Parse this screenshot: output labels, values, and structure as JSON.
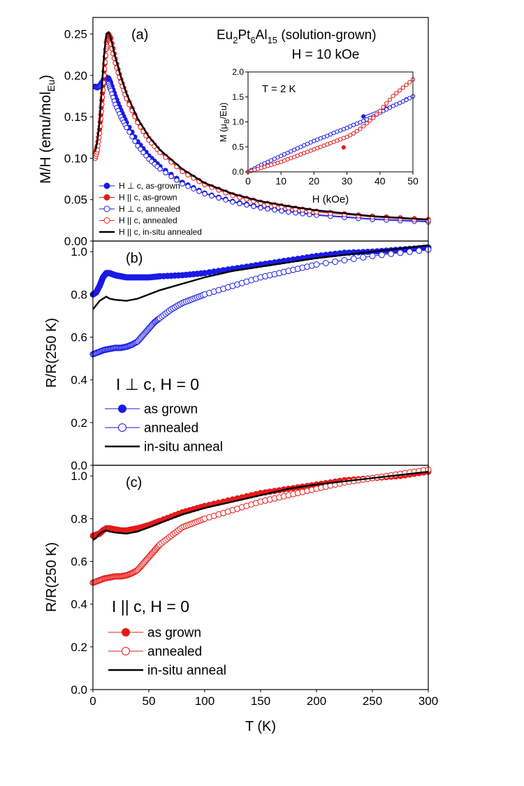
{
  "figure": {
    "title_prefix": "Eu",
    "title_sub1": "2",
    "title_mid1": "Pt",
    "title_sub2": "6",
    "title_mid2": "Al",
    "title_sub3": "15",
    "title_suffix": " (solution-grown)",
    "field_label": "H = 10 kOe"
  },
  "colors": {
    "blue": "#1a1ae6",
    "red": "#e61a1a",
    "black": "#000000"
  },
  "chart_data": [
    {
      "id": "a",
      "type": "scatter",
      "panel_label": "(a)",
      "ylabel_main": "M/H (emu/mol",
      "ylabel_sub": "Eu",
      "ylabel_close": ")",
      "xlim": [
        0,
        300
      ],
      "ylim": [
        0,
        0.27
      ],
      "yticks": [
        0.0,
        0.05,
        0.1,
        0.15,
        0.2,
        0.25
      ],
      "ytick_labels": [
        "0.00",
        "0.05",
        "0.10",
        "0.15",
        "0.20",
        "0.25"
      ],
      "legend": [
        "H ⊥ c, as-grown",
        "H || c, as-grown",
        "H ⊥ c, annealed",
        "H || c, annealed",
        "H || c, in-situ annealed"
      ],
      "series": [
        {
          "name": "H ⊥ c, as-grown",
          "color": "blue",
          "marker": "filled",
          "x": [
            2,
            4,
            6,
            8,
            10,
            12,
            14,
            16,
            20,
            25,
            30,
            40,
            50,
            60,
            80,
            100,
            125,
            150,
            175,
            200,
            250,
            300
          ],
          "y": [
            0.187,
            0.186,
            0.188,
            0.192,
            0.196,
            0.198,
            0.197,
            0.191,
            0.175,
            0.158,
            0.143,
            0.12,
            0.103,
            0.09,
            0.071,
            0.058,
            0.048,
            0.041,
            0.036,
            0.032,
            0.027,
            0.024
          ]
        },
        {
          "name": "H || c, as-grown",
          "color": "red",
          "marker": "filled",
          "x": [
            2,
            4,
            6,
            8,
            10,
            12,
            14,
            16,
            20,
            25,
            30,
            40,
            50,
            60,
            80,
            100,
            125,
            150,
            175,
            200,
            250,
            300
          ],
          "y": [
            0.105,
            0.115,
            0.135,
            0.17,
            0.205,
            0.24,
            0.25,
            0.245,
            0.22,
            0.195,
            0.175,
            0.145,
            0.124,
            0.108,
            0.085,
            0.069,
            0.056,
            0.047,
            0.041,
            0.036,
            0.03,
            0.026
          ]
        },
        {
          "name": "H ⊥ c, annealed",
          "color": "blue",
          "marker": "open",
          "x": [
            2,
            4,
            6,
            8,
            10,
            12,
            14,
            16,
            20,
            25,
            30,
            40,
            50,
            60,
            80,
            100,
            125,
            150,
            175,
            200,
            250,
            300
          ],
          "y": [
            0.186,
            0.185,
            0.187,
            0.19,
            0.192,
            0.193,
            0.19,
            0.182,
            0.165,
            0.15,
            0.137,
            0.115,
            0.099,
            0.087,
            0.069,
            0.057,
            0.047,
            0.04,
            0.035,
            0.031,
            0.026,
            0.023
          ]
        },
        {
          "name": "H || c, annealed",
          "color": "red",
          "marker": "open",
          "x": [
            2,
            4,
            6,
            8,
            10,
            12,
            14,
            16,
            20,
            25,
            30,
            40,
            50,
            60,
            80,
            100,
            125,
            150,
            175,
            200,
            250,
            300
          ],
          "y": [
            0.1,
            0.11,
            0.13,
            0.165,
            0.2,
            0.232,
            0.242,
            0.238,
            0.215,
            0.192,
            0.172,
            0.143,
            0.122,
            0.107,
            0.084,
            0.068,
            0.055,
            0.046,
            0.04,
            0.035,
            0.029,
            0.025
          ]
        },
        {
          "name": "H || c, in-situ annealed",
          "color": "black",
          "marker": "line",
          "x": [
            2,
            4,
            6,
            8,
            10,
            12,
            14,
            16,
            20,
            25,
            30,
            40,
            50,
            60,
            80,
            100,
            125,
            150,
            175,
            200,
            250,
            300
          ],
          "y": [
            0.108,
            0.12,
            0.145,
            0.185,
            0.225,
            0.25,
            0.252,
            0.245,
            0.222,
            0.198,
            0.178,
            0.148,
            0.126,
            0.11,
            0.087,
            0.07,
            0.057,
            0.048,
            0.042,
            0.037,
            0.03,
            0.026
          ]
        }
      ]
    },
    {
      "id": "a-inset",
      "type": "scatter",
      "annotation": "T = 2 K",
      "xlabel": "H (kOe)",
      "ylabel_main": "M (μ",
      "ylabel_sub": "B",
      "ylabel_close": "/Eu)",
      "xlim": [
        0,
        50
      ],
      "ylim": [
        0,
        2.0
      ],
      "xticks": [
        0,
        10,
        20,
        30,
        40,
        50
      ],
      "xtick_labels": [
        "0",
        "10",
        "20",
        "30",
        "40",
        "50"
      ],
      "yticks": [
        0.0,
        0.5,
        1.0,
        1.5,
        2.0
      ],
      "ytick_labels": [
        "0.0",
        "0.5",
        "1.0",
        "1.5",
        "2.0"
      ],
      "series": [
        {
          "name": "H ⊥ c, as-grown",
          "color": "blue",
          "marker": "filled",
          "x": [
            35,
            48
          ],
          "y": [
            1.11,
            1.45
          ]
        },
        {
          "name": "H || c, as-grown",
          "color": "red",
          "marker": "filled",
          "x": [
            29
          ],
          "y": [
            0.49
          ]
        },
        {
          "name": "H ⊥ c, annealed",
          "color": "blue",
          "marker": "open",
          "x": [
            0,
            2,
            4,
            6,
            8,
            10,
            12,
            14,
            16,
            18,
            20,
            22,
            24,
            26,
            28,
            30,
            32,
            34,
            36,
            38,
            40,
            42,
            44,
            46,
            48,
            50
          ],
          "y": [
            0.0,
            0.07,
            0.14,
            0.2,
            0.26,
            0.32,
            0.38,
            0.44,
            0.5,
            0.56,
            0.62,
            0.67,
            0.72,
            0.78,
            0.83,
            0.88,
            0.94,
            0.99,
            1.05,
            1.11,
            1.18,
            1.25,
            1.32,
            1.38,
            1.44,
            1.51
          ]
        },
        {
          "name": "H || c, annealed",
          "color": "red",
          "marker": "open",
          "x": [
            0,
            2,
            4,
            6,
            8,
            10,
            12,
            14,
            16,
            18,
            20,
            22,
            24,
            26,
            28,
            30,
            32,
            34,
            36,
            38,
            40,
            42,
            44,
            46,
            48,
            50
          ],
          "y": [
            0.0,
            0.04,
            0.08,
            0.12,
            0.16,
            0.2,
            0.25,
            0.3,
            0.35,
            0.4,
            0.45,
            0.5,
            0.55,
            0.6,
            0.65,
            0.7,
            0.77,
            0.86,
            0.97,
            1.08,
            1.22,
            1.37,
            1.52,
            1.63,
            1.74,
            1.85
          ]
        }
      ]
    },
    {
      "id": "b",
      "type": "line",
      "panel_label": "(b)",
      "annotation": "I ⊥ c, H = 0",
      "ylabel": "R/R(250 K)",
      "xlim": [
        0,
        300
      ],
      "ylim": [
        0,
        1.05
      ],
      "yticks": [
        0.0,
        0.2,
        0.4,
        0.6,
        0.8,
        1.0
      ],
      "ytick_labels": [
        "0.0",
        "0.2",
        "0.4",
        "0.6",
        "0.8",
        "1.0"
      ],
      "legend": [
        "as grown",
        "annealed",
        "in-situ anneal"
      ],
      "series": [
        {
          "name": "as grown",
          "color": "blue",
          "marker": "filled",
          "x": [
            0,
            3,
            6,
            9,
            12,
            15,
            20,
            25,
            30,
            40,
            50,
            60,
            80,
            100,
            125,
            150,
            175,
            200,
            225,
            250,
            275,
            300
          ],
          "y": [
            0.8,
            0.81,
            0.84,
            0.88,
            0.9,
            0.9,
            0.89,
            0.885,
            0.88,
            0.88,
            0.88,
            0.885,
            0.89,
            0.9,
            0.92,
            0.94,
            0.96,
            0.98,
            0.995,
            1.0,
            1.01,
            1.02
          ]
        },
        {
          "name": "annealed",
          "color": "blue",
          "marker": "open",
          "x": [
            0,
            5,
            10,
            15,
            20,
            25,
            30,
            35,
            40,
            45,
            50,
            55,
            60,
            70,
            80,
            90,
            100,
            125,
            150,
            175,
            200,
            250,
            300
          ],
          "y": [
            0.52,
            0.53,
            0.54,
            0.545,
            0.55,
            0.55,
            0.555,
            0.565,
            0.58,
            0.61,
            0.64,
            0.67,
            0.69,
            0.73,
            0.76,
            0.78,
            0.8,
            0.84,
            0.88,
            0.91,
            0.94,
            0.98,
            1.01
          ]
        },
        {
          "name": "in-situ anneal",
          "color": "black",
          "marker": "line",
          "x": [
            0,
            3,
            6,
            9,
            12,
            15,
            20,
            30,
            40,
            50,
            60,
            80,
            100,
            125,
            150,
            175,
            200,
            250,
            300
          ],
          "y": [
            0.73,
            0.75,
            0.77,
            0.78,
            0.79,
            0.78,
            0.775,
            0.77,
            0.78,
            0.8,
            0.82,
            0.85,
            0.88,
            0.91,
            0.93,
            0.95,
            0.97,
            1.0,
            1.03
          ]
        }
      ]
    },
    {
      "id": "c",
      "type": "line",
      "panel_label": "(c)",
      "annotation": "I || c, H = 0",
      "ylabel": "R/R(250 K)",
      "xlabel": "T (K)",
      "xlim": [
        0,
        300
      ],
      "ylim": [
        0,
        1.05
      ],
      "xticks": [
        0,
        50,
        100,
        150,
        200,
        250,
        300
      ],
      "xtick_labels": [
        "0",
        "50",
        "100",
        "150",
        "200",
        "250",
        "300"
      ],
      "yticks": [
        0.0,
        0.2,
        0.4,
        0.6,
        0.8,
        1.0
      ],
      "ytick_labels": [
        "0.0",
        "0.2",
        "0.4",
        "0.6",
        "0.8",
        "1.0"
      ],
      "legend": [
        "as grown",
        "annealed",
        "in-situ anneal"
      ],
      "series": [
        {
          "name": "as grown",
          "color": "red",
          "marker": "filled",
          "x": [
            0,
            3,
            6,
            9,
            12,
            15,
            20,
            25,
            30,
            35,
            40,
            50,
            60,
            80,
            100,
            125,
            150,
            175,
            200,
            225,
            250,
            275,
            300
          ],
          "y": [
            0.72,
            0.725,
            0.73,
            0.745,
            0.755,
            0.755,
            0.75,
            0.745,
            0.745,
            0.75,
            0.755,
            0.77,
            0.79,
            0.83,
            0.86,
            0.89,
            0.92,
            0.94,
            0.96,
            0.98,
            0.99,
            1.0,
            1.02
          ]
        },
        {
          "name": "annealed",
          "color": "red",
          "marker": "open",
          "x": [
            0,
            5,
            10,
            15,
            20,
            25,
            30,
            35,
            40,
            45,
            50,
            55,
            60,
            70,
            80,
            90,
            100,
            125,
            150,
            175,
            200,
            225,
            250,
            275,
            300
          ],
          "y": [
            0.5,
            0.51,
            0.52,
            0.525,
            0.53,
            0.53,
            0.535,
            0.545,
            0.56,
            0.59,
            0.62,
            0.65,
            0.68,
            0.72,
            0.76,
            0.78,
            0.8,
            0.84,
            0.88,
            0.91,
            0.94,
            0.97,
            0.99,
            1.01,
            1.03
          ]
        },
        {
          "name": "in-situ anneal",
          "color": "black",
          "marker": "line",
          "x": [
            0,
            3,
            6,
            9,
            12,
            15,
            20,
            30,
            40,
            50,
            60,
            80,
            100,
            125,
            150,
            175,
            200,
            250,
            300
          ],
          "y": [
            0.7,
            0.71,
            0.73,
            0.74,
            0.745,
            0.74,
            0.735,
            0.73,
            0.74,
            0.76,
            0.78,
            0.82,
            0.85,
            0.88,
            0.91,
            0.94,
            0.96,
            0.99,
            1.02
          ]
        }
      ]
    }
  ]
}
